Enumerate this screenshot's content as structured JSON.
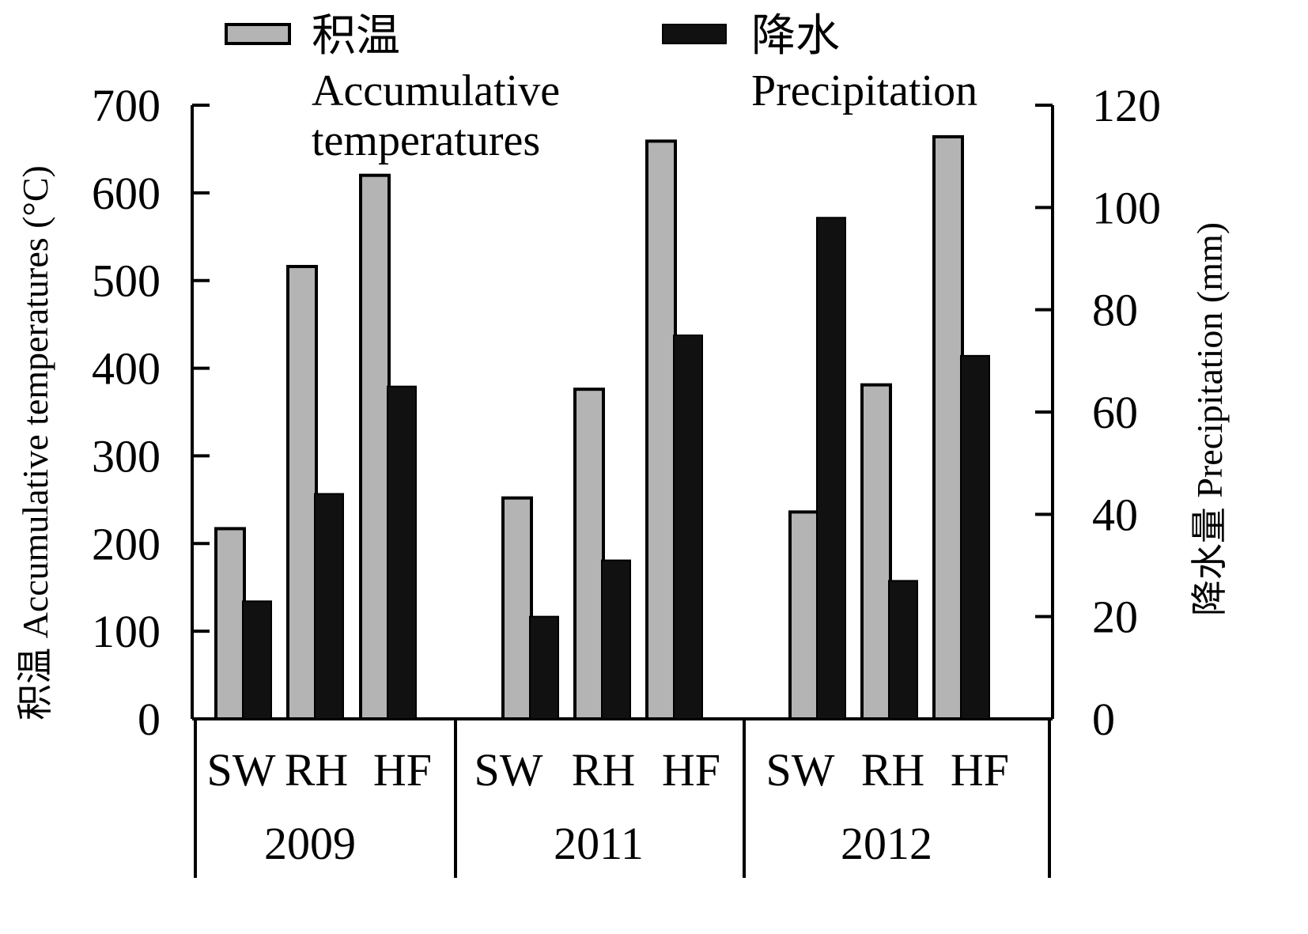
{
  "chart_data": {
    "type": "bar",
    "groups": [
      "2009",
      "2011",
      "2012"
    ],
    "categories": [
      "SW",
      "RH",
      "HF"
    ],
    "series": [
      {
        "name": "积温 Accumulative temperatures",
        "name_zh": "积温",
        "name_en": [
          "Accumulative",
          "temperatures"
        ],
        "axis": "left",
        "color": "#b4b4b4",
        "values": [
          [
            217,
            516,
            620
          ],
          [
            252,
            376,
            659
          ],
          [
            236,
            381,
            664
          ]
        ]
      },
      {
        "name": "降水 Precipitation",
        "name_zh": "降水",
        "name_en": [
          "Precipitation"
        ],
        "axis": "right",
        "color": "#111111",
        "values": [
          [
            23,
            44,
            65
          ],
          [
            20,
            31,
            75
          ],
          [
            98,
            27,
            71
          ]
        ]
      }
    ],
    "y_left": {
      "label": "积温 Accumulative temperatures (°C)",
      "range": [
        0,
        700
      ],
      "ticks": [
        0,
        100,
        200,
        300,
        400,
        500,
        600,
        700
      ]
    },
    "y_right": {
      "label": "降水量 Precipitation (mm)",
      "range": [
        0,
        120
      ],
      "ticks": [
        0,
        20,
        40,
        60,
        80,
        100,
        120
      ]
    },
    "legend": {
      "placement": "top"
    },
    "grid": false
  }
}
